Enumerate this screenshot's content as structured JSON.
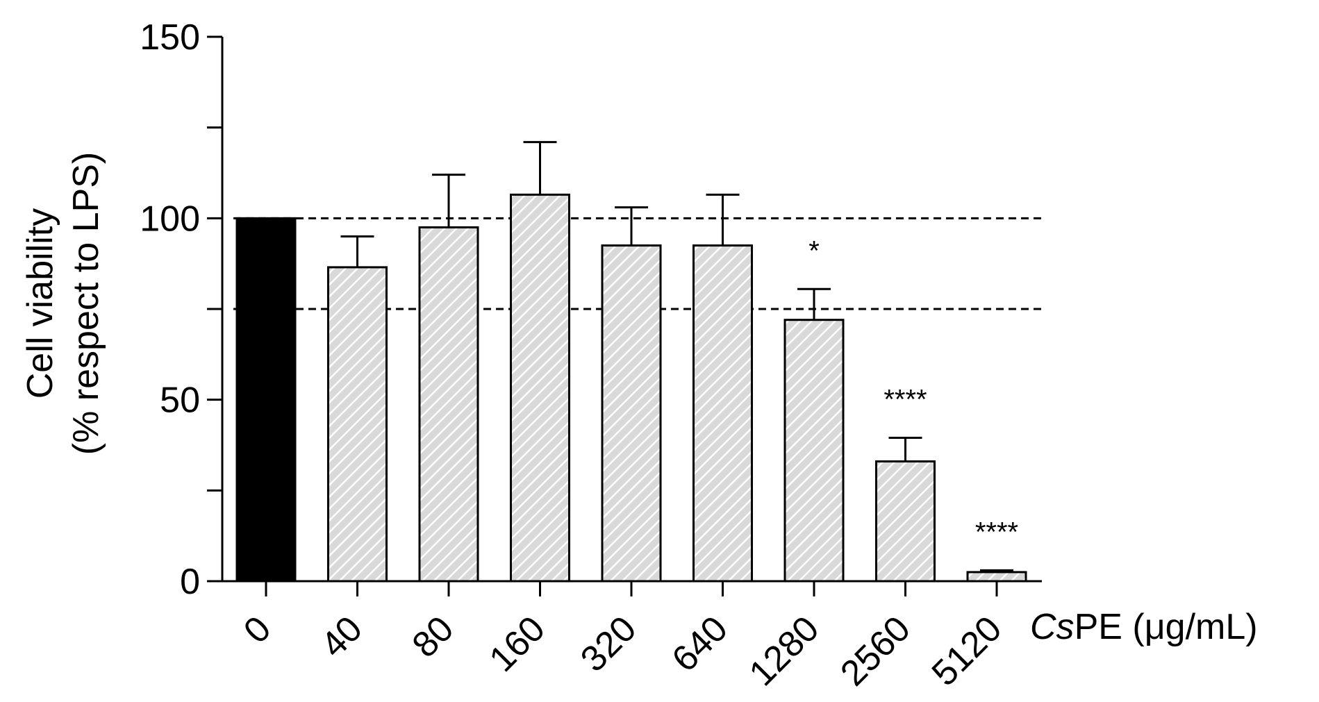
{
  "colors": {
    "control_fill": "#000000",
    "treated_fill": "#d9d9d9",
    "hatch": "#ffffff",
    "stroke": "#000000",
    "reference_line": "#000000"
  },
  "chart_data": {
    "type": "bar",
    "title": "",
    "ylabel_line1": "Cell viability",
    "ylabel_line2": "(% respect to LPS)",
    "xlabel_italic": "Cs",
    "xlabel_rest": "PE (μg/mL)",
    "ylim": [
      0,
      150
    ],
    "yticks": [
      0,
      50,
      100,
      150
    ],
    "ytick_labels": [
      "0",
      "50",
      "100",
      "150"
    ],
    "y_minor_step": 25,
    "grid": false,
    "legend": "none",
    "categories": [
      "0",
      "40",
      "80",
      "160",
      "320",
      "640",
      "1280",
      "2560",
      "5120"
    ],
    "values": [
      100,
      86.5,
      97.5,
      106.5,
      92.5,
      92.5,
      72,
      33,
      2.5
    ],
    "errors": [
      0,
      8.5,
      14.5,
      14.5,
      10.5,
      14,
      8.5,
      6.5,
      0.5
    ],
    "fill_style": [
      "solid",
      "hatched",
      "hatched",
      "hatched",
      "hatched",
      "hatched",
      "hatched",
      "hatched",
      "hatched"
    ],
    "significance": [
      "",
      "",
      "",
      "",
      "",
      "",
      "*",
      "****",
      "****"
    ],
    "reference_lines": [
      100,
      75
    ]
  }
}
